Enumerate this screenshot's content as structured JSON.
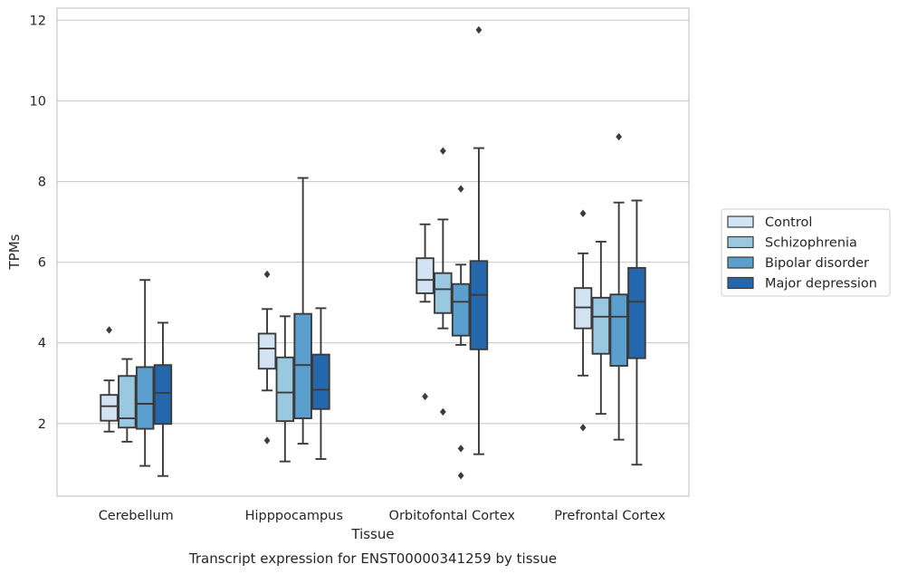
{
  "chart_data": {
    "type": "box",
    "title": "Transcript expression for ENST00000341259 by tissue",
    "xlabel": "Tissue",
    "ylabel": "TPMs",
    "ylim": [
      0.2,
      12.3
    ],
    "yticks": [
      2,
      4,
      6,
      8,
      10,
      12
    ],
    "grid": true,
    "legend_position": "right",
    "categories": [
      "Cerebellum",
      "Hipppocampus",
      "Orbitofontal Cortex",
      "Prefrontal Cortex"
    ],
    "series": [
      {
        "name": "Control",
        "color": "#d2e3f3",
        "boxes": [
          {
            "whislo": 1.8,
            "q1": 2.07,
            "med": 2.43,
            "q3": 2.71,
            "whishi": 3.07,
            "fliers": [
              4.32
            ]
          },
          {
            "whislo": 2.82,
            "q1": 3.36,
            "med": 3.86,
            "q3": 4.23,
            "whishi": 4.84,
            "fliers": [
              5.7,
              1.58
            ]
          },
          {
            "whislo": 5.02,
            "q1": 5.23,
            "med": 5.56,
            "q3": 6.1,
            "whishi": 6.94,
            "fliers": [
              2.67
            ]
          },
          {
            "whislo": 3.19,
            "q1": 4.36,
            "med": 4.88,
            "q3": 5.36,
            "whishi": 6.22,
            "fliers": [
              7.21,
              1.9
            ]
          }
        ]
      },
      {
        "name": "Schizophrenia",
        "color": "#9ac8e0",
        "boxes": [
          {
            "whislo": 1.55,
            "q1": 1.9,
            "med": 2.13,
            "q3": 3.18,
            "whishi": 3.6,
            "fliers": []
          },
          {
            "whislo": 1.06,
            "q1": 2.06,
            "med": 2.77,
            "q3": 3.64,
            "whishi": 4.66,
            "fliers": []
          },
          {
            "whislo": 4.36,
            "q1": 4.74,
            "med": 5.33,
            "q3": 5.73,
            "whishi": 7.06,
            "fliers": [
              8.76,
              2.29
            ]
          },
          {
            "whislo": 2.24,
            "q1": 3.73,
            "med": 4.65,
            "q3": 5.12,
            "whishi": 6.51,
            "fliers": []
          }
        ]
      },
      {
        "name": "Bipolar disorder",
        "color": "#5a9fcd",
        "boxes": [
          {
            "whislo": 0.95,
            "q1": 1.87,
            "med": 2.49,
            "q3": 3.4,
            "whishi": 5.56,
            "fliers": []
          },
          {
            "whislo": 1.5,
            "q1": 2.13,
            "med": 3.45,
            "q3": 4.72,
            "whishi": 8.09,
            "fliers": []
          },
          {
            "whislo": 3.95,
            "q1": 4.18,
            "med": 5.02,
            "q3": 5.46,
            "whishi": 5.94,
            "fliers": [
              7.82,
              1.38,
              0.71
            ]
          },
          {
            "whislo": 1.6,
            "q1": 3.43,
            "med": 4.65,
            "q3": 5.2,
            "whishi": 7.48,
            "fliers": [
              9.11
            ]
          }
        ]
      },
      {
        "name": "Major depression",
        "color": "#2567ac",
        "boxes": [
          {
            "whislo": 0.7,
            "q1": 1.99,
            "med": 2.76,
            "q3": 3.45,
            "whishi": 4.5,
            "fliers": []
          },
          {
            "whislo": 1.12,
            "q1": 2.36,
            "med": 2.84,
            "q3": 3.71,
            "whishi": 4.86,
            "fliers": []
          },
          {
            "whislo": 1.24,
            "q1": 3.84,
            "med": 5.19,
            "q3": 6.03,
            "whishi": 8.83,
            "fliers": [
              11.76
            ]
          },
          {
            "whislo": 0.98,
            "q1": 3.62,
            "med": 5.02,
            "q3": 5.86,
            "whishi": 7.53,
            "fliers": []
          }
        ]
      }
    ]
  }
}
